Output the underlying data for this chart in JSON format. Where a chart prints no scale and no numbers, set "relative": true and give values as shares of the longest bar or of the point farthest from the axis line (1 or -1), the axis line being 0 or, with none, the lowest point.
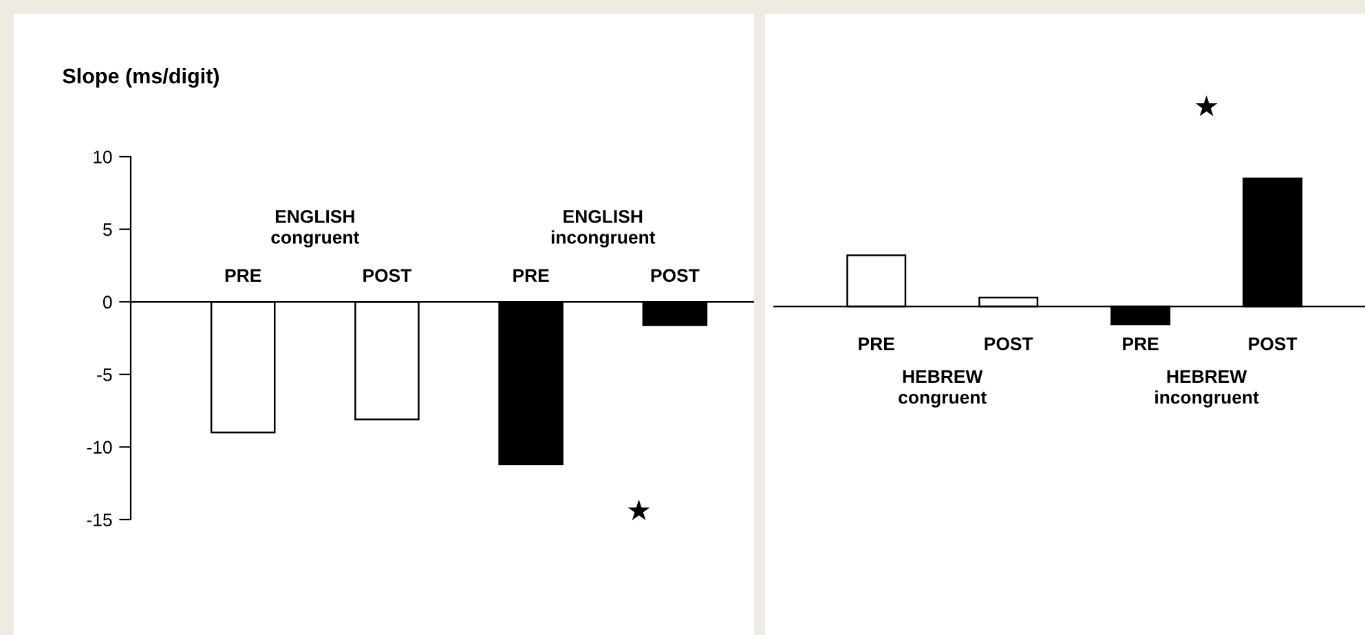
{
  "chart_data": [
    {
      "type": "bar",
      "ylabel": "Slope (ms/digit)",
      "categories": [
        "PRE",
        "POST",
        "PRE",
        "POST"
      ],
      "values": [
        -9.0,
        -8.1,
        -11.2,
        -1.6
      ],
      "colors": [
        "#ffffff",
        "#ffffff",
        "#000000",
        "#000000"
      ],
      "ylim": [
        -15,
        10
      ],
      "yticks": [
        -15,
        -10,
        -5,
        0,
        5,
        10
      ],
      "grid": false,
      "legend": false,
      "annotations": [
        "ENGLISH\ncongruent",
        "ENGLISH\nincongruent",
        "★"
      ]
    },
    {
      "type": "bar",
      "relative": true,
      "categories": [
        "PRE",
        "POST",
        "PRE",
        "POST"
      ],
      "values": [
        0.4,
        0.07,
        -0.14,
        1
      ],
      "colors": [
        "#ffffff",
        "#ffffff",
        "#000000",
        "#000000"
      ],
      "grid": false,
      "legend": false,
      "annotations": [
        "HEBREW\ncongruent",
        "HEBREW\nincongruent",
        "★"
      ]
    }
  ]
}
